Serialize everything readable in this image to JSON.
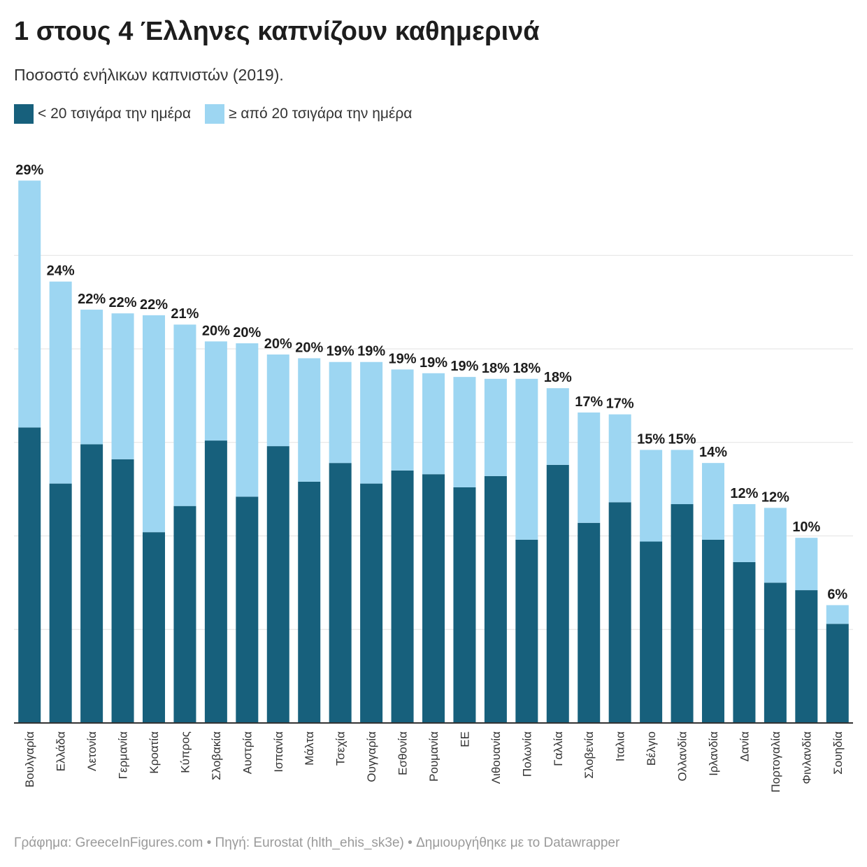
{
  "title": "1 στους 4 Έλληνες καπνίζουν καθημερινά",
  "subtitle": "Ποσοστό ενήλικων καπνιστών (2019).",
  "footer": "Γράφημα: GreeceInFigures.com • Πηγή: Eurostat (hlth_ehis_sk3e) • Δημιουργήθηκε με το Datawrapper",
  "chart_data": {
    "type": "bar",
    "stacked": true,
    "categories": [
      "Βουλγαρία",
      "Ελλάδα",
      "Λετονία",
      "Γερμανία",
      "Κροατία",
      "Κύπρος",
      "Σλοβακία",
      "Αυστρία",
      "Ισπανία",
      "Μάλτα",
      "Τσεχία",
      "Ουγγαρία",
      "Εσθονία",
      "Ρουμανία",
      "ΕΕ",
      "Λιθουανία",
      "Πολωνία",
      "Γαλλία",
      "Σλοβενία",
      "Ιταλια",
      "Βέλγιο",
      "Ολλανδία",
      "Ιρλανδία",
      "Δανία",
      "Πορτογαλία",
      "Φινλανδία",
      "Σουηδία"
    ],
    "series": [
      {
        "name": "< 20 τσιγάρα την ημέρα",
        "color": "#17607c",
        "values": [
          15.8,
          12.8,
          14.9,
          14.1,
          10.2,
          11.6,
          15.1,
          12.1,
          14.8,
          12.9,
          13.9,
          12.8,
          13.5,
          13.3,
          12.6,
          13.2,
          9.8,
          13.8,
          10.7,
          11.8,
          9.7,
          11.7,
          9.8,
          8.6,
          7.5,
          7.1,
          5.3
        ]
      },
      {
        "name": "≥ από 20 τσιγάρα την ημέρα",
        "color": "#9dd6f2",
        "values": [
          13.2,
          10.8,
          7.2,
          7.8,
          11.6,
          9.7,
          5.3,
          8.2,
          4.9,
          6.6,
          5.4,
          6.5,
          5.4,
          5.4,
          5.9,
          5.2,
          8.6,
          4.1,
          5.9,
          4.7,
          4.9,
          2.9,
          4.1,
          3.1,
          4.0,
          2.8,
          1.0
        ]
      }
    ],
    "total_labels": [
      "29%",
      "24%",
      "22%",
      "22%",
      "22%",
      "21%",
      "20%",
      "20%",
      "20%",
      "20%",
      "19%",
      "19%",
      "19%",
      "19%",
      "19%",
      "18%",
      "18%",
      "18%",
      "17%",
      "17%",
      "15%",
      "15%",
      "14%",
      "12%",
      "12%",
      "10%",
      "6%"
    ],
    "ylim": [
      0,
      30
    ],
    "gridlines": [
      5,
      10,
      15,
      20,
      25
    ],
    "grid": true,
    "legend": "top-left"
  }
}
